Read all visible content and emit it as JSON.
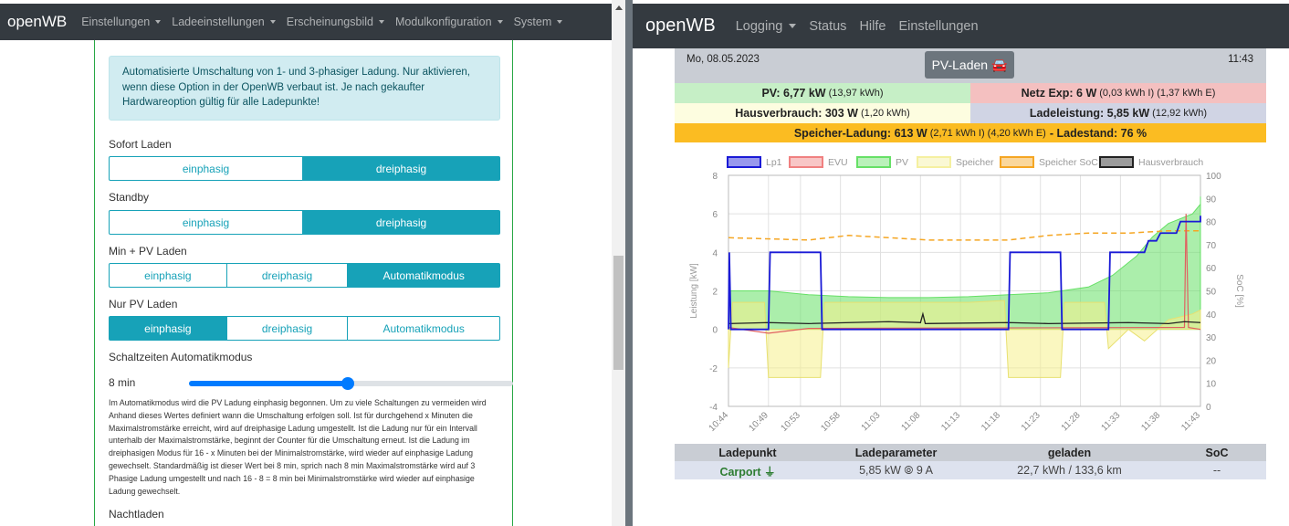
{
  "left_panel": {
    "brand": "openWB",
    "nav": [
      "Einstellungen",
      "Ladeeinstellungen",
      "Erscheinungsbild",
      "Modulkonfiguration",
      "System"
    ],
    "alert": "Automatisierte Umschaltung von 1- und 3-phasiger Ladung. Nur aktivieren, wenn diese Option in der OpenWB verbaut ist. Je nach gekaufter Hardwareoption gültig für alle Ladepunkte!",
    "groups": [
      {
        "label": "Sofort Laden",
        "options": [
          "einphasig",
          "dreiphasig"
        ],
        "active": 1
      },
      {
        "label": "Standby",
        "options": [
          "einphasig",
          "dreiphasig"
        ],
        "active": 1
      },
      {
        "label": "Min + PV Laden",
        "options": [
          "einphasig",
          "dreiphasig",
          "Automatikmodus"
        ],
        "active": 2
      },
      {
        "label": "Nur PV Laden",
        "options": [
          "einphasig",
          "dreiphasig",
          "Automatikmodus"
        ],
        "active": 0
      }
    ],
    "slider_label": "Schaltzeiten Automatikmodus",
    "slider_value": "8 min",
    "slider_fraction": 0.49,
    "description": "Im Automatikmodus wird die PV Ladung einphasig begonnen. Um zu viele Schaltungen zu vermeiden wird Anhand dieses Wertes definiert wann die Umschaltung erfolgen soll. Ist für durchgehend x Minuten die Maximalstromstärke erreicht, wird auf dreiphasige Ladung umgestellt. Ist die Ladung nur für ein Intervall unterhalb der Maximalstromstärke, beginnt der Counter für die Umschaltung erneut. Ist die Ladung im dreiphasigen Modus für 16 - x Minuten bei der Minimalstromstärke, wird wieder auf einphasige Ladung gewechselt. Standardmäßig ist dieser Wert bei 8 min, sprich nach 8 min Maximalstromstärke wird auf 3 Phasige Ladung umgestellt und nach 16 - 8 = 8 min bei Minimalstromstärke wird wieder auf einphasige Ladung gewechselt.",
    "next_label": "Nachtladen"
  },
  "right_panel": {
    "brand": "openWB",
    "nav": {
      "logging": "Logging",
      "status": "Status",
      "hilfe": "Hilfe",
      "einstellungen": "Einstellungen"
    },
    "date": "Mo, 08.05.2023",
    "time": "11:43",
    "mode_button": "PV-Laden 🚘",
    "pv": {
      "label": "PV: 6,77 kW",
      "sub": "(13,97 kWh)"
    },
    "netz": {
      "label": "Netz Exp: 6 W",
      "sub": "(0,03 kWh I) (1,37 kWh E)"
    },
    "haus": {
      "label": "Hausverbrauch: 303 W",
      "sub": "(1,20 kWh)"
    },
    "lade": {
      "label": "Ladeleistung: 5,85 kW",
      "sub": "(12,92 kWh)"
    },
    "speicher": {
      "label": "Speicher-Ladung: 613 W",
      "sub": "(2,71 kWh I) (4,20 kWh E)",
      "tail": "- Ladestand: 76 %"
    },
    "table": {
      "headers": [
        "Ladepunkt",
        "Ladeparameter",
        "geladen",
        "SoC"
      ],
      "row": [
        "Carport ⏚",
        "5,85 kW ⦾ 9 A",
        "22,7 kWh / 133,6 km",
        "--"
      ]
    },
    "colors": {
      "navbar": "#343a40",
      "pv_bg": "#c6efc6",
      "netz_bg": "#f4c0c0",
      "haus_bg": "#fdfde0",
      "lade_bg": "#d0d4e4",
      "speicher_bg": "#fbbc22"
    }
  },
  "chart_data": {
    "type": "line",
    "legend": [
      "Lp1",
      "EVU",
      "PV",
      "Speicher",
      "Speicher SoC",
      "Hausverbrauch"
    ],
    "legend_colors": [
      "#1a1ad6",
      "#f08080",
      "#66e066",
      "#f5f0a0",
      "#f5a623",
      "#222222"
    ],
    "x_labels": [
      "10:44",
      "10:49",
      "10:53",
      "10:58",
      "11:03",
      "11:08",
      "11:13",
      "11:18",
      "11:23",
      "11:28",
      "11:33",
      "11:38",
      "11:43"
    ],
    "ylabel": "Leistung [kW]",
    "ylabel_right": "SoC [%]",
    "ylim": [
      -4,
      8
    ],
    "ylim_right": [
      0,
      100
    ],
    "yticks": [
      -4,
      -2,
      0,
      2,
      4,
      6,
      8
    ],
    "yticks_right": [
      0,
      10,
      20,
      30,
      40,
      50,
      60,
      70,
      80,
      90,
      100
    ],
    "x_minutes": [
      0,
      5,
      9,
      14,
      19,
      24,
      29,
      34,
      39,
      44,
      49,
      54,
      59
    ],
    "series": {
      "lp1": [
        [
          0,
          0
        ],
        [
          0.1,
          4
        ],
        [
          0.3,
          0
        ],
        [
          5,
          0
        ],
        [
          5.2,
          4
        ],
        [
          11.5,
          4
        ],
        [
          11.7,
          0
        ],
        [
          35,
          0
        ],
        [
          35.2,
          4
        ],
        [
          41.5,
          4
        ],
        [
          41.7,
          0
        ],
        [
          47.5,
          0
        ],
        [
          47.7,
          4
        ],
        [
          52,
          4
        ],
        [
          52.5,
          4.6
        ],
        [
          53.5,
          4.6
        ],
        [
          54,
          5
        ],
        [
          56,
          5
        ],
        [
          56.5,
          5.6
        ],
        [
          59,
          5.6
        ],
        [
          59.5,
          5.9
        ],
        [
          62,
          5.9
        ]
      ],
      "pv": [
        [
          0,
          2
        ],
        [
          5,
          2
        ],
        [
          10,
          1.8
        ],
        [
          15,
          1.7
        ],
        [
          20,
          1.65
        ],
        [
          25,
          1.65
        ],
        [
          30,
          1.7
        ],
        [
          35,
          1.8
        ],
        [
          40,
          1.9
        ],
        [
          45,
          2.2
        ],
        [
          48,
          2.8
        ],
        [
          51,
          3.8
        ],
        [
          53,
          4.8
        ],
        [
          55,
          5.5
        ],
        [
          58,
          6
        ],
        [
          60,
          6.5
        ],
        [
          62,
          6.9
        ]
      ],
      "speicher": [
        [
          0,
          -2
        ],
        [
          0.5,
          1.4
        ],
        [
          4.5,
          1.4
        ],
        [
          5,
          -2.5
        ],
        [
          11.5,
          -2.5
        ],
        [
          12,
          1.4
        ],
        [
          30,
          1.4
        ],
        [
          34.5,
          1.5
        ],
        [
          35,
          -2.5
        ],
        [
          41.5,
          -2.5
        ],
        [
          42,
          1.4
        ],
        [
          47,
          1.4
        ],
        [
          47.5,
          -1
        ],
        [
          50,
          0
        ],
        [
          52,
          -0.6
        ],
        [
          55,
          0.5
        ],
        [
          58,
          0.8
        ],
        [
          62,
          1
        ]
      ],
      "soc": [
        [
          0,
          73
        ],
        [
          10,
          72
        ],
        [
          15,
          74
        ],
        [
          20,
          73
        ],
        [
          25,
          72
        ],
        [
          30,
          72
        ],
        [
          35,
          72
        ],
        [
          40,
          74
        ],
        [
          45,
          75
        ],
        [
          50,
          75
        ],
        [
          55,
          76
        ],
        [
          62,
          76
        ]
      ],
      "haus": [
        [
          0,
          0.3
        ],
        [
          5,
          0.35
        ],
        [
          10,
          0.3
        ],
        [
          20,
          0.4
        ],
        [
          24,
          0.35
        ],
        [
          24.3,
          0.8
        ],
        [
          24.6,
          0.3
        ],
        [
          35,
          0.35
        ],
        [
          40,
          0.3
        ],
        [
          50,
          0.35
        ],
        [
          55,
          0.3
        ],
        [
          57,
          0.4
        ],
        [
          62,
          0.35
        ]
      ],
      "evu": [
        [
          0,
          0.1
        ],
        [
          5,
          -0.2
        ],
        [
          10,
          0.05
        ],
        [
          57,
          0.1
        ],
        [
          57.2,
          6
        ],
        [
          57.5,
          0.1
        ],
        [
          62,
          0
        ]
      ]
    }
  }
}
